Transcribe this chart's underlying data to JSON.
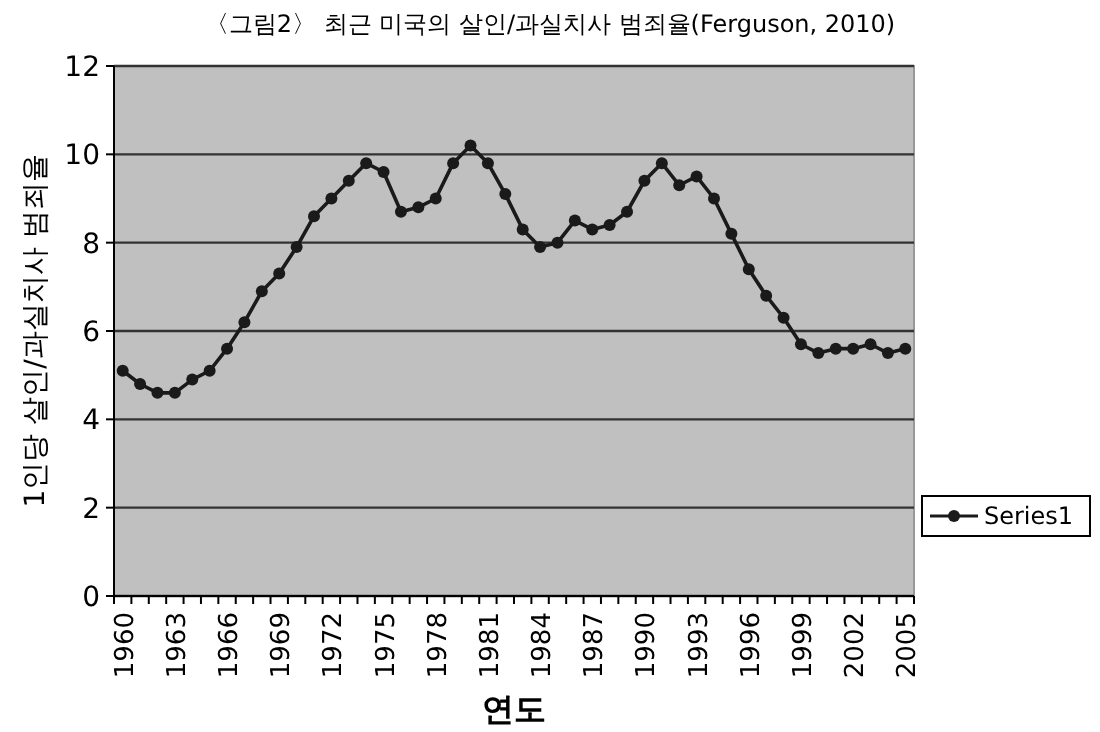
{
  "chart_data": {
    "type": "line",
    "title": "〈그림2〉 최근 미국의 살인/과실치사 범죄율(Ferguson, 2010)",
    "xlabel": "연도",
    "ylabel": "1인당 살인/과실치사 범죄율",
    "categories": [
      "1960",
      null,
      null,
      "1963",
      null,
      null,
      "1966",
      null,
      null,
      "1969",
      null,
      null,
      "1972",
      null,
      null,
      "1975",
      null,
      null,
      "1978",
      null,
      null,
      "1981",
      null,
      null,
      "1984",
      null,
      null,
      "1987",
      null,
      null,
      "1990",
      null,
      null,
      "1993",
      null,
      null,
      "1996",
      null,
      null,
      "1999",
      null,
      null,
      "2002",
      null,
      null,
      "2005"
    ],
    "series": [
      {
        "name": "Series1",
        "color": "#1a1a1a",
        "values": [
          5.1,
          4.8,
          4.6,
          4.6,
          4.9,
          5.1,
          5.6,
          6.2,
          6.9,
          7.3,
          7.9,
          8.6,
          9.0,
          9.4,
          9.8,
          9.6,
          8.7,
          8.8,
          9.0,
          9.8,
          10.2,
          9.8,
          9.1,
          8.3,
          7.9,
          8.0,
          8.5,
          8.3,
          8.4,
          8.7,
          9.4,
          9.8,
          9.3,
          9.5,
          9.0,
          8.2,
          7.4,
          6.8,
          6.3,
          5.7,
          5.5,
          5.6,
          5.6,
          5.7,
          5.5,
          5.6
        ]
      }
    ],
    "ylim": [
      0,
      12
    ],
    "yticks": [
      0,
      2,
      4,
      6,
      8,
      10,
      12
    ],
    "grid": "y",
    "legend": "right",
    "marker": "circle",
    "line_style": "solid"
  }
}
